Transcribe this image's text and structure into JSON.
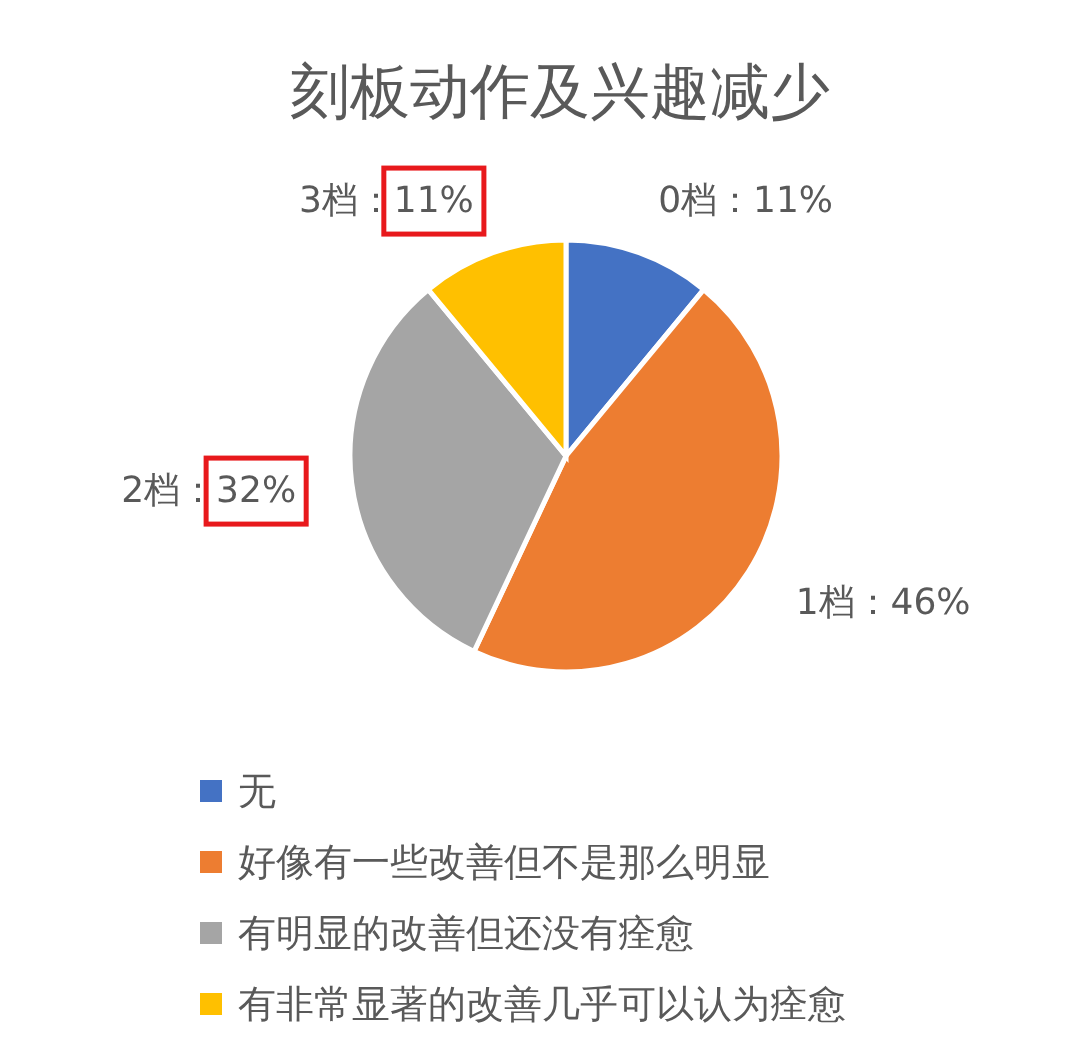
{
  "chart_data": {
    "type": "pie",
    "title": "刻板动作及兴趣减少",
    "categories": [
      "无",
      "好像有一些改善但不是那么明显",
      "有明显的改善但还没有痊愈",
      "有非常显著的改善几乎可以认为痊愈"
    ],
    "values": [
      11,
      46,
      32,
      11
    ],
    "colors": [
      "#4472c4",
      "#ed7d31",
      "#a5a5a5",
      "#ffc000"
    ],
    "value_labels": [
      "0档：11%",
      "1档：46%",
      "2档：32%",
      "3档：11%"
    ],
    "legend": "bottom"
  }
}
